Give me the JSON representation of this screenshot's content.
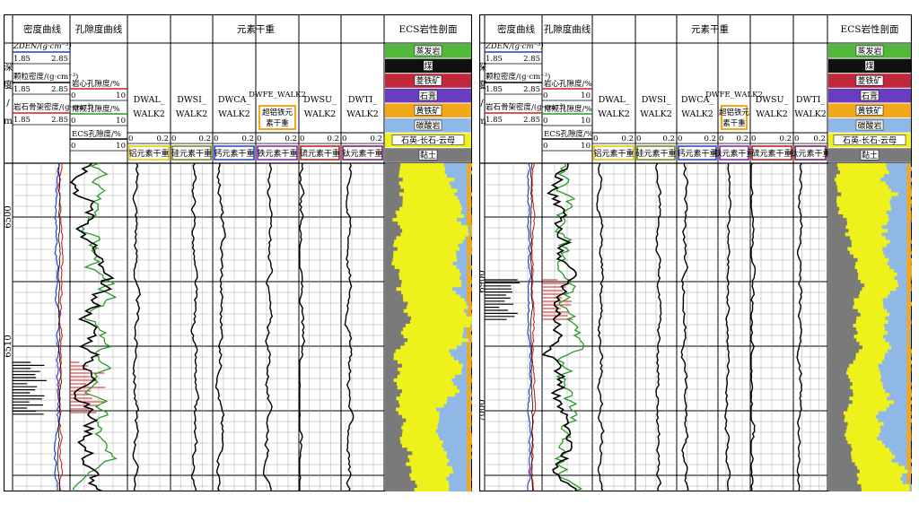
{
  "panels": [
    {
      "track_titles": {
        "density": "密度曲线",
        "porosity": "孔隙度曲线",
        "elements": "元素干重",
        "ecs": "ECS岩性剖面"
      },
      "depth_label": [
        "深",
        "度",
        "/",
        "m"
      ],
      "density_curves": [
        {
          "name": "ZDEN/(g·cm⁻³)",
          "min": "1.85",
          "max": "2.85",
          "color": "#1f3bd1"
        },
        {
          "name": "颗粒密度/(g·cm⁻³)",
          "min": "1.85",
          "max": "2.85",
          "color": "#000000"
        },
        {
          "name": "岩石骨架密度/(g·cm⁻³)",
          "min": "1.85",
          "max": "2.85",
          "color": "#d11f1f"
        }
      ],
      "porosity_curves": [
        {
          "name": "岩心孔隙度/%",
          "min": "0",
          "max": "10",
          "color": "#d11f1f"
        },
        {
          "name": "常规孔隙度/%",
          "min": "0",
          "max": "10",
          "color": "#2a9a2a"
        },
        {
          "name": "ECS孔隙度/%",
          "min": "0",
          "max": "10",
          "color": "#000000"
        }
      ],
      "element_tracks": [
        {
          "curve": "DWAL_ WALK2",
          "min": "0",
          "max": "0.2",
          "element": "铝元素干重",
          "color": "#e6c800"
        },
        {
          "curve": "DWSI_ WALK2",
          "min": "0",
          "max": "0.2",
          "element": "硅元素干重",
          "color": "#7a8a1e"
        },
        {
          "curve": "DWCA_ WALK2",
          "min": "0",
          "max": "0.2",
          "element": "钙元素干重",
          "color": "#2a4ad1"
        },
        {
          "curve": "DWFE_WALK2",
          "min": "0",
          "max": "0.2",
          "element": "铁元素干重",
          "extra": "超铝铁元素干重",
          "color": "#8a2ab0"
        },
        {
          "curve": "DWSU_ WALK2",
          "min": "0",
          "max": "0.2",
          "element": "硫元素干重",
          "color": "#c01f1f"
        },
        {
          "curve": "DWTI_ WALK2",
          "min": "0",
          "max": "0.2",
          "element": "钛元素干重",
          "color": "#7a1f6a"
        }
      ],
      "lithology_legend": [
        {
          "label": "蒸发岩",
          "color": "#52b83a"
        },
        {
          "label": "煤",
          "color": "#111111"
        },
        {
          "label": "菱铁矿",
          "color": "#c0283c"
        },
        {
          "label": "石膏",
          "color": "#6a3cc0"
        },
        {
          "label": "黄铁矿",
          "color": "#f2a818"
        },
        {
          "label": "碳酸岩",
          "color": "#8fb8e6"
        },
        {
          "label": "石英-长石-云母",
          "color": "#eef21a"
        },
        {
          "label": "黏土",
          "color": "#7a7a7a"
        }
      ],
      "depth_ticks": [
        "6500",
        "6510"
      ]
    },
    {
      "track_titles": {
        "density": "密度曲线",
        "porosity": "孔隙度曲线",
        "elements": "元素干重",
        "ecs": "ECS岩性剖面"
      },
      "depth_label": [
        "深",
        "度",
        "/",
        "m"
      ],
      "density_curves": [
        {
          "name": "ZDEN/(g·cm⁻³)",
          "min": "1.85",
          "max": "2.85",
          "color": "#1f3bd1"
        },
        {
          "name": "颗粒密度/(g·cm⁻³)",
          "min": "1.85",
          "max": "2.85",
          "color": "#000000"
        },
        {
          "name": "岩石骨架密度/(g·cm⁻³)",
          "min": "1.85",
          "max": "2.85",
          "color": "#d11f1f"
        }
      ],
      "porosity_curves": [
        {
          "name": "岩心孔隙度/%",
          "min": "0",
          "max": "10",
          "color": "#d11f1f"
        },
        {
          "name": "常规孔隙度/%",
          "min": "0",
          "max": "10",
          "color": "#2a9a2a"
        },
        {
          "name": "ECS孔隙度/%",
          "min": "0",
          "max": "10",
          "color": "#000000"
        }
      ],
      "element_tracks": [
        {
          "curve": "DWAL_ WALK2",
          "min": "0",
          "max": "0.2",
          "element": "铝元素干重",
          "color": "#e6c800"
        },
        {
          "curve": "DWSI_ WALK2",
          "min": "0",
          "max": "0.2",
          "element": "硅元素干重",
          "color": "#7a8a1e"
        },
        {
          "curve": "DWCA_ WALK2",
          "min": "0",
          "max": "0.2",
          "element": "钙元素干重",
          "color": "#2a4ad1"
        },
        {
          "curve": "DWFE_WALK2",
          "min": "0",
          "max": "0.2",
          "element": "铁元素干重",
          "extra": "超铝铁元素干重",
          "color": "#8a2ab0"
        },
        {
          "curve": "DWSU_ WALK2",
          "min": "0",
          "max": "0.2",
          "element": "硫元素干重",
          "color": "#c01f1f"
        },
        {
          "curve": "DWTI_ WALK2",
          "min": "0",
          "max": "0.2",
          "element": "钛元素干重",
          "color": "#7a1f6a"
        }
      ],
      "lithology_legend": [
        {
          "label": "蒸发岩",
          "color": "#52b83a"
        },
        {
          "label": "煤",
          "color": "#111111"
        },
        {
          "label": "菱铁矿",
          "color": "#c0283c"
        },
        {
          "label": "石膏",
          "color": "#6a3cc0"
        },
        {
          "label": "黄铁矿",
          "color": "#f2a818"
        },
        {
          "label": "碳酸岩",
          "color": "#8fb8e6"
        },
        {
          "label": "石英-长石-云母",
          "color": "#eef21a"
        },
        {
          "label": "黏土",
          "color": "#7a7a7a"
        }
      ],
      "depth_ticks": [
        "6900",
        "7000"
      ]
    }
  ]
}
